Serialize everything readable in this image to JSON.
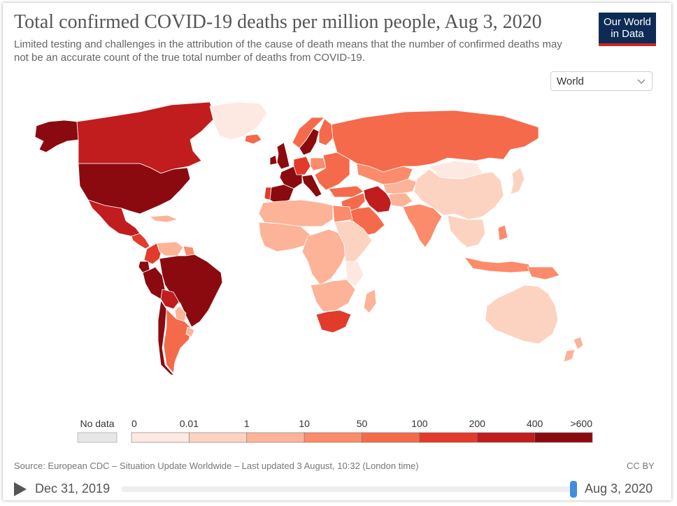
{
  "header": {
    "title": "Total confirmed COVID-19 deaths per million people, Aug 3, 2020",
    "subtitle": "Limited testing and challenges in the attribution of the cause of death means that the number of confirmed deaths may not be an accurate count of the true total number of deaths from COVID-19.",
    "logo_line1": "Our World",
    "logo_line2": "in Data"
  },
  "controls": {
    "region_select": "World"
  },
  "chart_data": {
    "type": "choropleth",
    "title": "Total confirmed COVID-19 deaths per million people, Aug 3, 2020",
    "date": "Aug 3, 2020",
    "legend": {
      "no_data_label": "No data",
      "no_data_color": "#e6e6e6",
      "thresholds": [
        "0",
        "0.01",
        "1",
        "10",
        "50",
        "100",
        "200",
        "400",
        ">600"
      ],
      "colors": [
        "#fde9e1",
        "#fcd3c1",
        "#fcb398",
        "#fb8b6a",
        "#f46a4b",
        "#e23a2b",
        "#c11c1e",
        "#8b0a10"
      ]
    },
    "regions": [
      {
        "name": "Canada",
        "bin": 7
      },
      {
        "name": "Alaska",
        "bin": 8
      },
      {
        "name": "United States",
        "bin": 8
      },
      {
        "name": "Greenland",
        "bin": 1
      },
      {
        "name": "Mexico",
        "bin": 7
      },
      {
        "name": "Central America",
        "bin": 6
      },
      {
        "name": "Caribbean",
        "bin": 3
      },
      {
        "name": "Venezuela",
        "bin": 3
      },
      {
        "name": "Colombia",
        "bin": 6
      },
      {
        "name": "Guianas",
        "bin": 4
      },
      {
        "name": "Ecuador",
        "bin": 8
      },
      {
        "name": "Peru",
        "bin": 8
      },
      {
        "name": "Brazil",
        "bin": 8
      },
      {
        "name": "Bolivia",
        "bin": 7
      },
      {
        "name": "Chile",
        "bin": 8
      },
      {
        "name": "Paraguay",
        "bin": 3
      },
      {
        "name": "Argentina",
        "bin": 5
      },
      {
        "name": "Uruguay",
        "bin": 3
      },
      {
        "name": "Iceland",
        "bin": 5
      },
      {
        "name": "United Kingdom",
        "bin": 8
      },
      {
        "name": "Ireland",
        "bin": 8
      },
      {
        "name": "France",
        "bin": 8
      },
      {
        "name": "Spain",
        "bin": 8
      },
      {
        "name": "Portugal",
        "bin": 6
      },
      {
        "name": "Italy",
        "bin": 8
      },
      {
        "name": "Sweden",
        "bin": 8
      },
      {
        "name": "Norway",
        "bin": 5
      },
      {
        "name": "Finland",
        "bin": 5
      },
      {
        "name": "Germany",
        "bin": 6
      },
      {
        "name": "Poland",
        "bin": 4
      },
      {
        "name": "Eastern Europe",
        "bin": 5
      },
      {
        "name": "Russia",
        "bin": 5
      },
      {
        "name": "Turkey",
        "bin": 5
      },
      {
        "name": "Iran",
        "bin": 7
      },
      {
        "name": "Saudi Arabia",
        "bin": 5
      },
      {
        "name": "Middle East",
        "bin": 5
      },
      {
        "name": "Kazakhstan",
        "bin": 4
      },
      {
        "name": "Central Asia",
        "bin": 3
      },
      {
        "name": "Afghanistan",
        "bin": 3
      },
      {
        "name": "India",
        "bin": 4
      },
      {
        "name": "China",
        "bin": 2
      },
      {
        "name": "Mongolia",
        "bin": 1
      },
      {
        "name": "Japan",
        "bin": 2
      },
      {
        "name": "Southeast Asia",
        "bin": 2
      },
      {
        "name": "Indonesia",
        "bin": 4
      },
      {
        "name": "Philippines",
        "bin": 4
      },
      {
        "name": "Australia",
        "bin": 2
      },
      {
        "name": "New Zealand",
        "bin": 3
      },
      {
        "name": "North Africa",
        "bin": 3
      },
      {
        "name": "Egypt",
        "bin": 4
      },
      {
        "name": "West Africa",
        "bin": 3
      },
      {
        "name": "Central Africa",
        "bin": 3
      },
      {
        "name": "East Africa",
        "bin": 2
      },
      {
        "name": "Tanzania",
        "bin": 1
      },
      {
        "name": "Southern Africa",
        "bin": 3
      },
      {
        "name": "South Africa",
        "bin": 6
      },
      {
        "name": "Madagascar",
        "bin": 3
      }
    ]
  },
  "footer": {
    "source": "Source: European CDC – Situation Update Worldwide – Last updated 3 August, 10:32 (London time)",
    "license": "CC BY"
  },
  "timeline": {
    "start": "Dec 31, 2019",
    "end": "Aug 3, 2020",
    "position": 1.0
  }
}
